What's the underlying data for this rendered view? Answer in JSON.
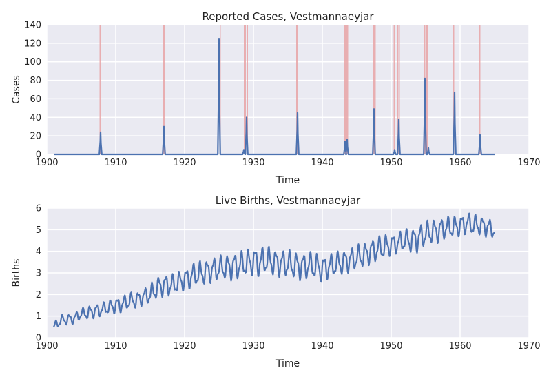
{
  "colors": {
    "background": "#eaeaf2",
    "grid": "#ffffff",
    "line": "#4c72b0",
    "highlight": "#e8a3a6"
  },
  "chart_data": [
    {
      "type": "line",
      "title": "Reported Cases, Vestmannaeyjar",
      "xlabel": "Time",
      "ylabel": "Cases",
      "xlim": [
        1900,
        1970
      ],
      "ylim": [
        0,
        140
      ],
      "x_ticks": [
        1900,
        1910,
        1920,
        1930,
        1940,
        1950,
        1960,
        1970
      ],
      "y_ticks": [
        0,
        20,
        40,
        60,
        80,
        100,
        120,
        140
      ],
      "grid": true,
      "baseline": 0,
      "series": [
        {
          "peaks": [
            {
              "year": 1907.8,
              "value": 24
            },
            {
              "year": 1917.0,
              "value": 30
            },
            {
              "year": 1925.0,
              "value": 125
            },
            {
              "year": 1928.6,
              "value": 5
            },
            {
              "year": 1929.0,
              "value": 40
            },
            {
              "year": 1936.4,
              "value": 45
            },
            {
              "year": 1943.3,
              "value": 14
            },
            {
              "year": 1943.6,
              "value": 16
            },
            {
              "year": 1947.5,
              "value": 49
            },
            {
              "year": 1950.5,
              "value": 5
            },
            {
              "year": 1951.1,
              "value": 38
            },
            {
              "year": 1954.9,
              "value": 82
            },
            {
              "year": 1955.4,
              "value": 7
            },
            {
              "year": 1959.2,
              "value": 67
            },
            {
              "year": 1962.9,
              "value": 21
            }
          ]
        }
      ],
      "highlight_spans": [
        [
          1907.65,
          1907.85
        ],
        [
          1916.9,
          1917.1
        ],
        [
          1925.1,
          1925.25
        ],
        [
          1928.6,
          1928.9
        ],
        [
          1929.05,
          1929.2
        ],
        [
          1936.2,
          1936.45
        ],
        [
          1943.2,
          1943.45
        ],
        [
          1943.5,
          1943.75
        ],
        [
          1947.3,
          1947.75
        ],
        [
          1950.35,
          1950.5
        ],
        [
          1950.8,
          1951.0
        ],
        [
          1951.05,
          1951.25
        ],
        [
          1954.75,
          1954.95
        ],
        [
          1955.0,
          1955.35
        ],
        [
          1958.95,
          1959.15
        ],
        [
          1962.75,
          1962.95
        ]
      ]
    },
    {
      "type": "line",
      "title": "Live Births, Vestmannaeyjar",
      "xlabel": "Time",
      "ylabel": "Births",
      "xlim": [
        1900,
        1970
      ],
      "ylim": [
        0,
        6
      ],
      "x_ticks": [
        1900,
        1910,
        1920,
        1930,
        1940,
        1950,
        1960,
        1970
      ],
      "y_ticks": [
        0,
        1,
        2,
        3,
        4,
        5,
        6
      ],
      "grid": true,
      "series": [
        {
          "x": [
            1901,
            1902,
            1903,
            1904,
            1905,
            1906,
            1907,
            1908,
            1909,
            1910,
            1911,
            1912,
            1913,
            1914,
            1915,
            1916,
            1917,
            1918,
            1919,
            1920,
            1921,
            1922,
            1923,
            1924,
            1925,
            1926,
            1927,
            1928,
            1929,
            1930,
            1931,
            1932,
            1933,
            1934,
            1935,
            1936,
            1937,
            1938,
            1939,
            1940,
            1941,
            1942,
            1943,
            1944,
            1945,
            1946,
            1947,
            1948,
            1949,
            1950,
            1951,
            1952,
            1953,
            1954,
            1955,
            1956,
            1957,
            1958,
            1959,
            1960,
            1961,
            1962,
            1963,
            1964,
            1965
          ],
          "y": [
            0.5,
            0.8,
            0.85,
            0.9,
            1.1,
            1.15,
            1.25,
            1.3,
            1.4,
            1.5,
            1.55,
            1.7,
            1.75,
            1.9,
            2.0,
            2.3,
            2.45,
            2.4,
            2.55,
            2.7,
            2.85,
            2.95,
            3.05,
            3.15,
            3.2,
            3.25,
            3.3,
            3.35,
            3.45,
            3.55,
            3.5,
            3.6,
            3.5,
            3.45,
            3.4,
            3.35,
            3.3,
            3.35,
            3.3,
            3.2,
            3.3,
            3.4,
            3.5,
            3.6,
            3.7,
            3.8,
            4.0,
            4.1,
            4.2,
            4.3,
            4.4,
            4.5,
            4.5,
            4.6,
            4.8,
            4.9,
            5.0,
            5.1,
            5.1,
            5.2,
            5.3,
            5.2,
            5.2,
            5.1,
            5.0
          ],
          "seasonal_amplitude": [
            0.15,
            0.2,
            0.2,
            0.2,
            0.2,
            0.25,
            0.25,
            0.25,
            0.25,
            0.3,
            0.3,
            0.3,
            0.3,
            0.3,
            0.35,
            0.4,
            0.4,
            0.4,
            0.4,
            0.4,
            0.45,
            0.45,
            0.45,
            0.45,
            0.45,
            0.45,
            0.5,
            0.5,
            0.5,
            0.55,
            0.55,
            0.5,
            0.5,
            0.5,
            0.5,
            0.5,
            0.5,
            0.5,
            0.5,
            0.5,
            0.45,
            0.45,
            0.45,
            0.45,
            0.45,
            0.45,
            0.45,
            0.45,
            0.45,
            0.4,
            0.4,
            0.4,
            0.45,
            0.5,
            0.45,
            0.45,
            0.45,
            0.4,
            0.4,
            0.4,
            0.4,
            0.4,
            0.35,
            0.35,
            0.35
          ]
        }
      ]
    }
  ]
}
